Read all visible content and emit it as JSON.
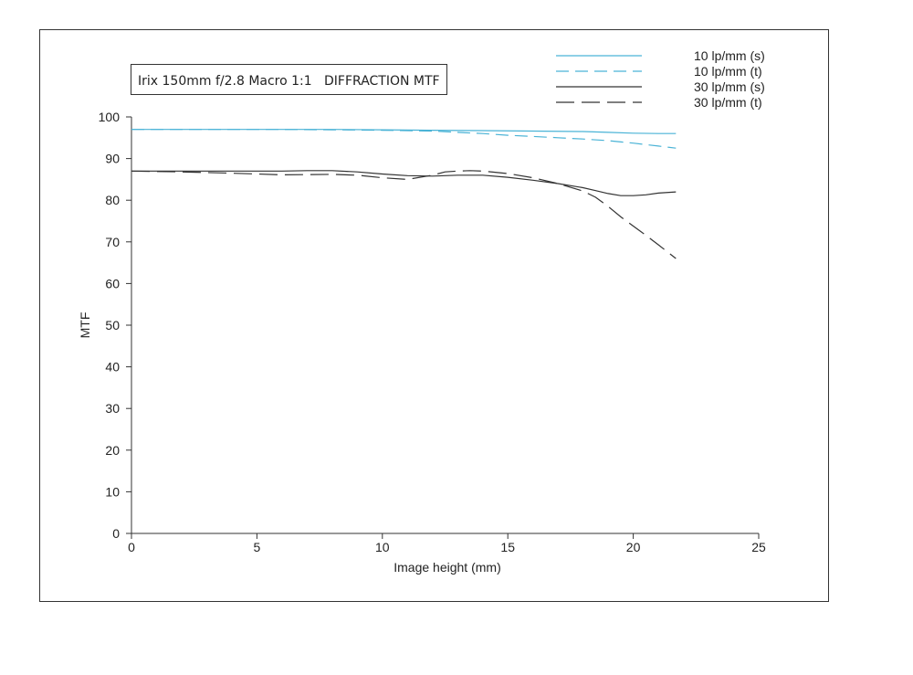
{
  "chart_data": {
    "type": "line",
    "title": "Irix 150mm f/2.8 Macro 1:1   DIFFRACTION MTF",
    "xlabel": "Image height (mm)",
    "ylabel": "MTF",
    "xlim": [
      0,
      25
    ],
    "ylim": [
      0,
      100
    ],
    "xticks": [
      0,
      5,
      10,
      15,
      20,
      25
    ],
    "yticks": [
      0,
      10,
      20,
      30,
      40,
      50,
      60,
      70,
      80,
      90,
      100
    ],
    "grid": false,
    "legend_position": "top-right",
    "series": [
      {
        "name": "10 lp/mm (s)",
        "color": "#4ab3d6",
        "dash": "solid",
        "x": [
          0,
          2,
          4,
          6,
          8,
          10,
          12,
          14,
          16,
          18,
          19,
          20,
          21,
          21.7
        ],
        "y": [
          97,
          97,
          97,
          97,
          97,
          96.9,
          96.8,
          96.7,
          96.6,
          96.5,
          96.3,
          96.1,
          96,
          96
        ]
      },
      {
        "name": "10 lp/mm (t)",
        "color": "#4ab3d6",
        "dash": "dashed",
        "x": [
          0,
          2,
          4,
          6,
          8,
          10,
          12,
          13,
          14,
          15,
          16,
          17,
          18,
          19,
          20,
          21,
          21.7
        ],
        "y": [
          97,
          97,
          97,
          97,
          96.9,
          96.8,
          96.6,
          96.3,
          96,
          95.6,
          95.3,
          95,
          94.7,
          94.3,
          93.7,
          93,
          92.5
        ]
      },
      {
        "name": "30 lp/mm (s)",
        "color": "#333333",
        "dash": "solid",
        "x": [
          0,
          2,
          4,
          6,
          7,
          8,
          9,
          10,
          11,
          12,
          13,
          14,
          15,
          16,
          17,
          18,
          18.5,
          19,
          19.5,
          20,
          20.5,
          21,
          21.7
        ],
        "y": [
          87,
          87,
          87,
          87,
          87.1,
          87.1,
          86.8,
          86.3,
          85.9,
          85.8,
          86,
          86,
          85.5,
          84.8,
          84,
          83,
          82.3,
          81.6,
          81.1,
          81.1,
          81.3,
          81.7,
          82
        ]
      },
      {
        "name": "30 lp/mm (t)",
        "color": "#333333",
        "dash": "longdash",
        "x": [
          0,
          2,
          4,
          6,
          8,
          9,
          10,
          11,
          12,
          12.5,
          13,
          13.5,
          14,
          15,
          16,
          17,
          18,
          18.5,
          19,
          19.5,
          20,
          20.5,
          21,
          21.7
        ],
        "y": [
          87,
          86.8,
          86.5,
          86.1,
          86.2,
          86,
          85.4,
          85,
          86,
          86.8,
          87,
          87.1,
          87,
          86.4,
          85.4,
          84,
          82.2,
          80.7,
          78.5,
          76,
          73.8,
          71.6,
          69.3,
          66
        ]
      }
    ]
  }
}
